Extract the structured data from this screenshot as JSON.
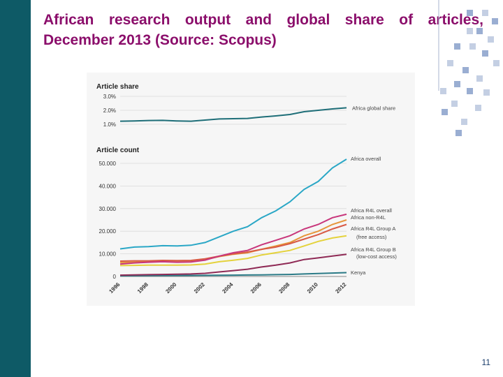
{
  "slide": {
    "title_line1": "African research output and global share of articles,",
    "title_line2": "December 2013 (Source: Scopus)",
    "page_number": "11"
  },
  "colors": {
    "sidebar": "#0e5a66",
    "title": "#8b0e6b",
    "deco_square": "#c4cfe3",
    "deco_square_dark": "#9aaed2",
    "deco_line": "#a9b6cf"
  },
  "chart_data": [
    {
      "type": "line",
      "title": "Article share",
      "x": [
        1996,
        1997,
        1998,
        1999,
        2000,
        2001,
        2002,
        2003,
        2004,
        2005,
        2006,
        2007,
        2008,
        2009,
        2010,
        2011,
        2012
      ],
      "ylim": [
        1.0,
        3.0
      ],
      "yticks": [
        1.0,
        2.0,
        3.0
      ],
      "ytick_labels": [
        "1.0%",
        "2.0%",
        "3.0%"
      ],
      "series": [
        {
          "name": "Africa global share",
          "color": "#1e6e78",
          "values": [
            1.22,
            1.24,
            1.27,
            1.28,
            1.24,
            1.22,
            1.3,
            1.38,
            1.4,
            1.42,
            1.52,
            1.6,
            1.7,
            1.9,
            2.0,
            2.1,
            2.18
          ]
        }
      ]
    },
    {
      "type": "line",
      "title": "Article count",
      "x": [
        1996,
        1997,
        1998,
        1999,
        2000,
        2001,
        2002,
        2003,
        2004,
        2005,
        2006,
        2007,
        2008,
        2009,
        2010,
        2011,
        2012
      ],
      "ylim": [
        0,
        50000
      ],
      "yticks": [
        0,
        10000,
        20000,
        30000,
        40000,
        50000
      ],
      "ytick_labels": [
        "0",
        "10.000",
        "20.000",
        "30.000",
        "40.000",
        "50.000"
      ],
      "xtick_labels": [
        "1996",
        "1998",
        "2000",
        "2002",
        "2004",
        "2006",
        "2008",
        "2010",
        "2012"
      ],
      "series": [
        {
          "name": "Africa overall",
          "color": "#2aa7c6",
          "values": [
            12200,
            13000,
            13200,
            13600,
            13500,
            13800,
            15000,
            17500,
            20000,
            22000,
            26000,
            29000,
            33000,
            38500,
            42000,
            48000,
            52000
          ]
        },
        {
          "name": "Africa R4L overall",
          "color": "#c8367b",
          "values": [
            5500,
            6000,
            6300,
            6500,
            6300,
            6400,
            7200,
            9000,
            10500,
            11500,
            14000,
            16000,
            18000,
            21000,
            23000,
            26000,
            27500
          ]
        },
        {
          "name": "Africa non-R4L",
          "color": "#d85a45",
          "values": [
            6800,
            6900,
            6900,
            7100,
            7000,
            7100,
            7800,
            9000,
            10000,
            10800,
            12000,
            13000,
            14500,
            16500,
            18500,
            21000,
            23000
          ]
        },
        {
          "name": "Africa R4L Group A",
          "color": "#e6963a",
          "values": [
            6200,
            6300,
            6500,
            6800,
            6700,
            6800,
            7500,
            8800,
            9800,
            10500,
            12000,
            13500,
            15000,
            18000,
            20000,
            23000,
            25000
          ]
        },
        {
          "name": "Africa R4L Group B",
          "color": "#e4d23c",
          "values": [
            4800,
            4900,
            5000,
            5000,
            5000,
            5100,
            5500,
            6500,
            7200,
            8000,
            9500,
            10500,
            11500,
            13500,
            15500,
            17000,
            18000
          ]
        },
        {
          "name": "",
          "color": "#8f2a55",
          "values": [
            600,
            700,
            800,
            900,
            1000,
            1100,
            1400,
            2000,
            2600,
            3200,
            4200,
            5000,
            6000,
            7500,
            8200,
            9000,
            9800
          ]
        },
        {
          "name": "Kenya",
          "color": "#2a7a86",
          "values": [
            300,
            350,
            400,
            420,
            430,
            450,
            500,
            550,
            600,
            650,
            700,
            800,
            900,
            1100,
            1300,
            1500,
            1700
          ]
        }
      ],
      "legend": [
        {
          "text": "Africa overall"
        },
        {
          "text": "Africa R4L overall"
        },
        {
          "text": "Africa non-R4L"
        },
        {
          "text": "Africa R4L Group A"
        },
        {
          "text": "(free access)"
        },
        {
          "text": "Africa R4L Group B"
        },
        {
          "text": "(low-cost access)"
        },
        {
          "text": "Kenya"
        }
      ]
    }
  ]
}
